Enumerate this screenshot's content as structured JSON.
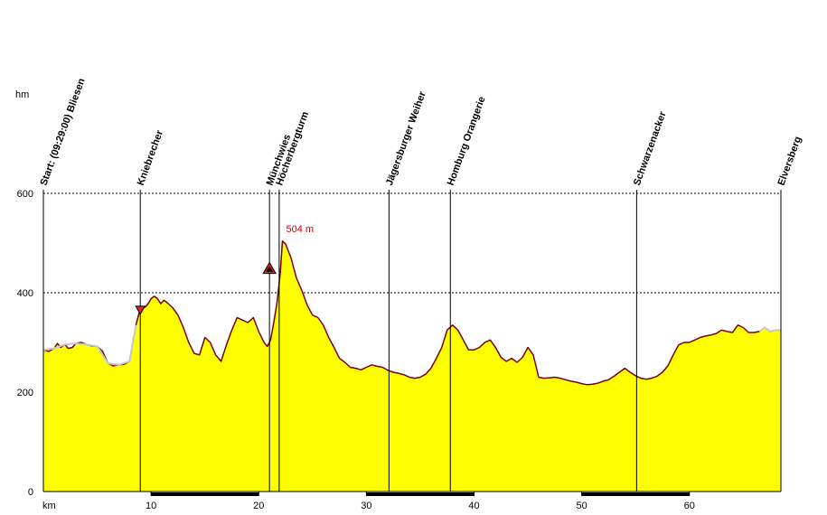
{
  "chart_data": {
    "type": "area",
    "ylabel": "hm",
    "xlabel": "km",
    "xlim": [
      0,
      68.5
    ],
    "ylim": [
      0,
      600
    ],
    "x_ticks": [
      "10",
      "20",
      "30",
      "40",
      "50",
      "60"
    ],
    "y_ticks": [
      "0",
      "200",
      "400",
      "600"
    ],
    "grid": true,
    "fill_color": "#ffff00",
    "line_color": "#7a0000",
    "pre_start_color": "#c8c8c8",
    "max_label": "504 m",
    "max_point": {
      "x": 22.2,
      "y": 504
    },
    "waypoints": [
      {
        "km": 0.0,
        "label": "Start: (09:29:00) Bliesen"
      },
      {
        "km": 9.0,
        "label": "Kniebrecher"
      },
      {
        "km": 21.0,
        "label": "Münchwies"
      },
      {
        "km": 21.9,
        "label": "Höcherbergturm"
      },
      {
        "km": 32.1,
        "label": "Jägersburger Weiher"
      },
      {
        "km": 37.8,
        "label": "Homburg Orangerie"
      },
      {
        "km": 55.1,
        "label": "Schwarzenacker"
      },
      {
        "km": 68.5,
        "label": "Elversberg"
      }
    ],
    "profile": [
      [
        0,
        285
      ],
      [
        0.5,
        282
      ],
      [
        1,
        288
      ],
      [
        1.3,
        298
      ],
      [
        1.6,
        290
      ],
      [
        2,
        296
      ],
      [
        2.3,
        288
      ],
      [
        2.7,
        290
      ],
      [
        3,
        298
      ],
      [
        3.5,
        300
      ],
      [
        4,
        296
      ],
      [
        4.5,
        293
      ],
      [
        5,
        292
      ],
      [
        5.5,
        282
      ],
      [
        6,
        258
      ],
      [
        6.5,
        253
      ],
      [
        7,
        255
      ],
      [
        7.5,
        256
      ],
      [
        8,
        262
      ],
      [
        8.3,
        300
      ],
      [
        8.6,
        335
      ],
      [
        8.9,
        360
      ],
      [
        9.2,
        368
      ],
      [
        9.5,
        372
      ],
      [
        9.8,
        380
      ],
      [
        10,
        388
      ],
      [
        10.3,
        393
      ],
      [
        10.6,
        388
      ],
      [
        10.9,
        378
      ],
      [
        11.2,
        385
      ],
      [
        11.5,
        380
      ],
      [
        12,
        370
      ],
      [
        12.5,
        355
      ],
      [
        13,
        330
      ],
      [
        13.5,
        300
      ],
      [
        14,
        278
      ],
      [
        14.5,
        275
      ],
      [
        15,
        310
      ],
      [
        15.5,
        300
      ],
      [
        16,
        275
      ],
      [
        16.5,
        262
      ],
      [
        17,
        295
      ],
      [
        17.5,
        325
      ],
      [
        18,
        350
      ],
      [
        18.5,
        345
      ],
      [
        19,
        340
      ],
      [
        19.5,
        350
      ],
      [
        20,
        322
      ],
      [
        20.5,
        300
      ],
      [
        20.8,
        292
      ],
      [
        21.1,
        305
      ],
      [
        21.4,
        340
      ],
      [
        21.7,
        380
      ],
      [
        22.0,
        440
      ],
      [
        22.2,
        504
      ],
      [
        22.5,
        498
      ],
      [
        23,
        470
      ],
      [
        23.5,
        430
      ],
      [
        24,
        405
      ],
      [
        24.5,
        375
      ],
      [
        25,
        355
      ],
      [
        25.5,
        350
      ],
      [
        26,
        335
      ],
      [
        26.5,
        310
      ],
      [
        27,
        290
      ],
      [
        27.5,
        268
      ],
      [
        28,
        260
      ],
      [
        28.5,
        250
      ],
      [
        29,
        248
      ],
      [
        29.5,
        245
      ],
      [
        30,
        250
      ],
      [
        30.5,
        255
      ],
      [
        31,
        252
      ],
      [
        31.5,
        250
      ],
      [
        32,
        244
      ],
      [
        32.5,
        240
      ],
      [
        33,
        238
      ],
      [
        33.5,
        235
      ],
      [
        34,
        230
      ],
      [
        34.5,
        228
      ],
      [
        35,
        230
      ],
      [
        35.5,
        236
      ],
      [
        36,
        248
      ],
      [
        36.5,
        268
      ],
      [
        37,
        290
      ],
      [
        37.5,
        325
      ],
      [
        38,
        335
      ],
      [
        38.5,
        325
      ],
      [
        39,
        305
      ],
      [
        39.5,
        285
      ],
      [
        40,
        285
      ],
      [
        40.5,
        290
      ],
      [
        41,
        300
      ],
      [
        41.5,
        305
      ],
      [
        42,
        290
      ],
      [
        42.5,
        270
      ],
      [
        43,
        262
      ],
      [
        43.5,
        268
      ],
      [
        44,
        260
      ],
      [
        44.5,
        270
      ],
      [
        45,
        290
      ],
      [
        45.5,
        275
      ],
      [
        46,
        230
      ],
      [
        46.5,
        228
      ],
      [
        47,
        229
      ],
      [
        47.5,
        230
      ],
      [
        48,
        228
      ],
      [
        48.5,
        225
      ],
      [
        49,
        222
      ],
      [
        49.5,
        220
      ],
      [
        50,
        217
      ],
      [
        50.5,
        215
      ],
      [
        51,
        216
      ],
      [
        51.5,
        218
      ],
      [
        52,
        222
      ],
      [
        52.5,
        225
      ],
      [
        53,
        232
      ],
      [
        53.5,
        240
      ],
      [
        54,
        248
      ],
      [
        54.5,
        240
      ],
      [
        55,
        233
      ],
      [
        55.5,
        228
      ],
      [
        56,
        226
      ],
      [
        56.5,
        228
      ],
      [
        57,
        232
      ],
      [
        57.5,
        240
      ],
      [
        58,
        253
      ],
      [
        58.5,
        275
      ],
      [
        59,
        295
      ],
      [
        59.5,
        300
      ],
      [
        60,
        300
      ],
      [
        60.5,
        305
      ],
      [
        61,
        310
      ],
      [
        61.5,
        313
      ],
      [
        62,
        315
      ],
      [
        62.5,
        318
      ],
      [
        63,
        325
      ],
      [
        63.5,
        322
      ],
      [
        64,
        320
      ],
      [
        64.5,
        335
      ],
      [
        65,
        330
      ],
      [
        65.5,
        320
      ],
      [
        66,
        320
      ],
      [
        66.5,
        322
      ],
      [
        67,
        330
      ],
      [
        67.5,
        322
      ],
      [
        68,
        325
      ],
      [
        68.5,
        325
      ]
    ],
    "pre_start_profile": [
      [
        0,
        285
      ],
      [
        1,
        288
      ],
      [
        2,
        296
      ],
      [
        3,
        298
      ],
      [
        4,
        296
      ],
      [
        5,
        292
      ],
      [
        6,
        258
      ],
      [
        7,
        255
      ],
      [
        8,
        262
      ],
      [
        8.6,
        335
      ]
    ],
    "post_end_profile": [
      [
        66.5,
        322
      ],
      [
        67,
        330
      ],
      [
        67.5,
        322
      ],
      [
        68,
        325
      ],
      [
        68.5,
        325
      ]
    ]
  }
}
